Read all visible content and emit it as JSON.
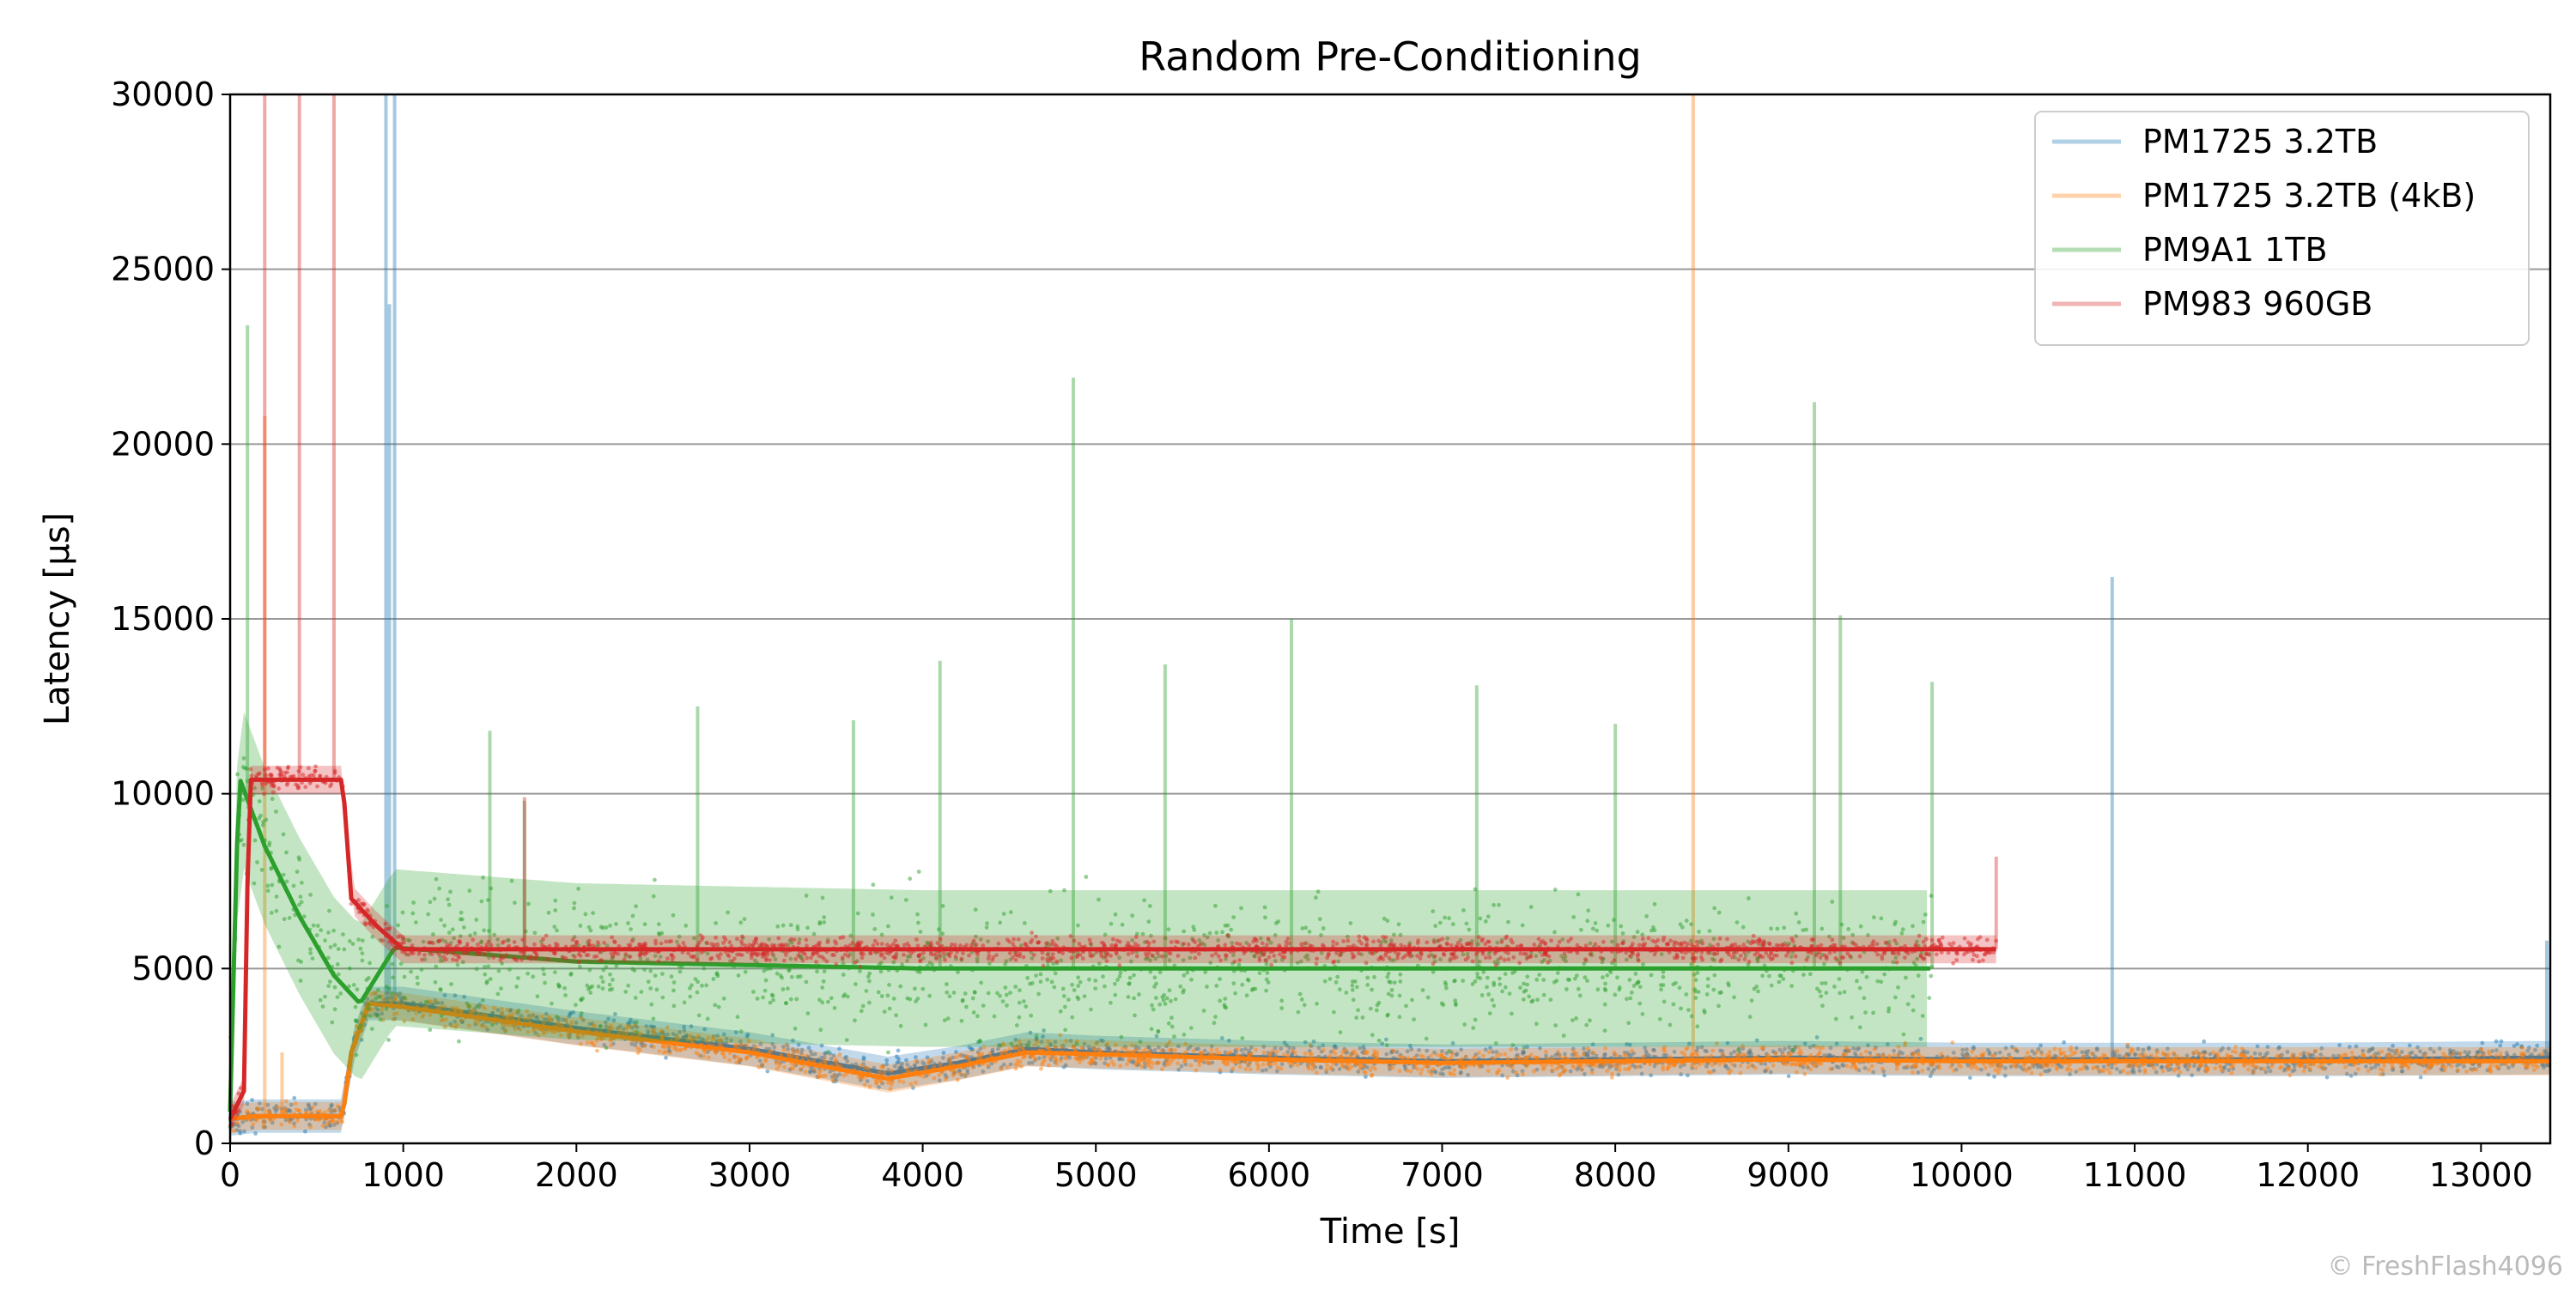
{
  "chart_data": {
    "type": "line",
    "title": "Random Pre-Conditioning",
    "xlabel": "Time [s]",
    "ylabel": "Latency [µs]",
    "xlim": [
      0,
      13400
    ],
    "ylim": [
      0,
      30000
    ],
    "xticks": [
      0,
      1000,
      2000,
      3000,
      4000,
      5000,
      6000,
      7000,
      8000,
      9000,
      10000,
      11000,
      12000,
      13000
    ],
    "yticks": [
      0,
      5000,
      10000,
      15000,
      20000,
      25000,
      30000
    ],
    "grid": "horizontal",
    "legend_position": "top-right",
    "series": [
      {
        "name": "PM1725 3.2TB",
        "color": "#1f77b4",
        "median": [
          [
            0,
            700
          ],
          [
            150,
            780
          ],
          [
            650,
            780
          ],
          [
            700,
            2600
          ],
          [
            800,
            4000
          ],
          [
            1000,
            4000
          ],
          [
            2000,
            3300
          ],
          [
            3000,
            2700
          ],
          [
            3800,
            2000
          ],
          [
            4200,
            2300
          ],
          [
            4600,
            2700
          ],
          [
            5000,
            2600
          ],
          [
            6000,
            2450
          ],
          [
            7000,
            2350
          ],
          [
            8000,
            2400
          ],
          [
            9000,
            2450
          ],
          [
            10000,
            2400
          ],
          [
            11000,
            2400
          ],
          [
            12000,
            2400
          ],
          [
            13400,
            2450
          ]
        ],
        "spread": 300,
        "spikes": [
          [
            900,
            30000
          ],
          [
            950,
            30000
          ],
          [
            920,
            24000
          ],
          [
            10870,
            16200
          ],
          [
            13380,
            5800
          ]
        ]
      },
      {
        "name": "PM1725 3.2TB (4kB)",
        "color": "#ff7f0e",
        "median": [
          [
            0,
            700
          ],
          [
            150,
            780
          ],
          [
            650,
            780
          ],
          [
            700,
            2600
          ],
          [
            800,
            4000
          ],
          [
            1000,
            3900
          ],
          [
            2000,
            3200
          ],
          [
            3000,
            2600
          ],
          [
            3800,
            1850
          ],
          [
            4200,
            2200
          ],
          [
            4600,
            2600
          ],
          [
            5000,
            2550
          ],
          [
            6000,
            2400
          ],
          [
            7000,
            2300
          ],
          [
            8000,
            2350
          ],
          [
            9000,
            2400
          ],
          [
            10000,
            2350
          ],
          [
            11000,
            2350
          ],
          [
            12000,
            2350
          ],
          [
            13400,
            2350
          ]
        ],
        "spread": 250,
        "spikes": [
          [
            8450,
            30000
          ],
          [
            200,
            20800
          ],
          [
            300,
            2600
          ]
        ]
      },
      {
        "name": "PM9A1 1TB",
        "color": "#2ca02c",
        "median": [
          [
            0,
            900
          ],
          [
            50,
            10500
          ],
          [
            200,
            8500
          ],
          [
            400,
            6500
          ],
          [
            600,
            4800
          ],
          [
            750,
            4000
          ],
          [
            850,
            4800
          ],
          [
            950,
            5600
          ],
          [
            2000,
            5200
          ],
          [
            4000,
            5000
          ],
          [
            6000,
            5000
          ],
          [
            8000,
            5000
          ],
          [
            9830,
            5000
          ]
        ],
        "spread": 1400,
        "spikes": [
          [
            100,
            23400
          ],
          [
            4870,
            21900
          ],
          [
            9150,
            21200
          ],
          [
            6130,
            15000
          ],
          [
            9300,
            15100
          ],
          [
            4100,
            13800
          ],
          [
            5400,
            13700
          ],
          [
            7200,
            13100
          ],
          [
            3600,
            12100
          ],
          [
            2700,
            12500
          ],
          [
            1500,
            11800
          ],
          [
            8000,
            12000
          ],
          [
            9830,
            13200
          ],
          [
            1700,
            9800
          ]
        ]
      },
      {
        "name": "PM983 960GB",
        "color": "#d62728",
        "median": [
          [
            0,
            700
          ],
          [
            80,
            1500
          ],
          [
            110,
            10400
          ],
          [
            650,
            10400
          ],
          [
            700,
            7000
          ],
          [
            850,
            6200
          ],
          [
            1000,
            5550
          ],
          [
            5000,
            5550
          ],
          [
            10200,
            5550
          ]
        ],
        "spread": 250,
        "spikes": [
          [
            200,
            30000
          ],
          [
            400,
            30000
          ],
          [
            600,
            30000
          ],
          [
            10200,
            8200
          ],
          [
            1700,
            9900
          ]
        ]
      }
    ]
  },
  "watermark": "© FreshFlash4096"
}
